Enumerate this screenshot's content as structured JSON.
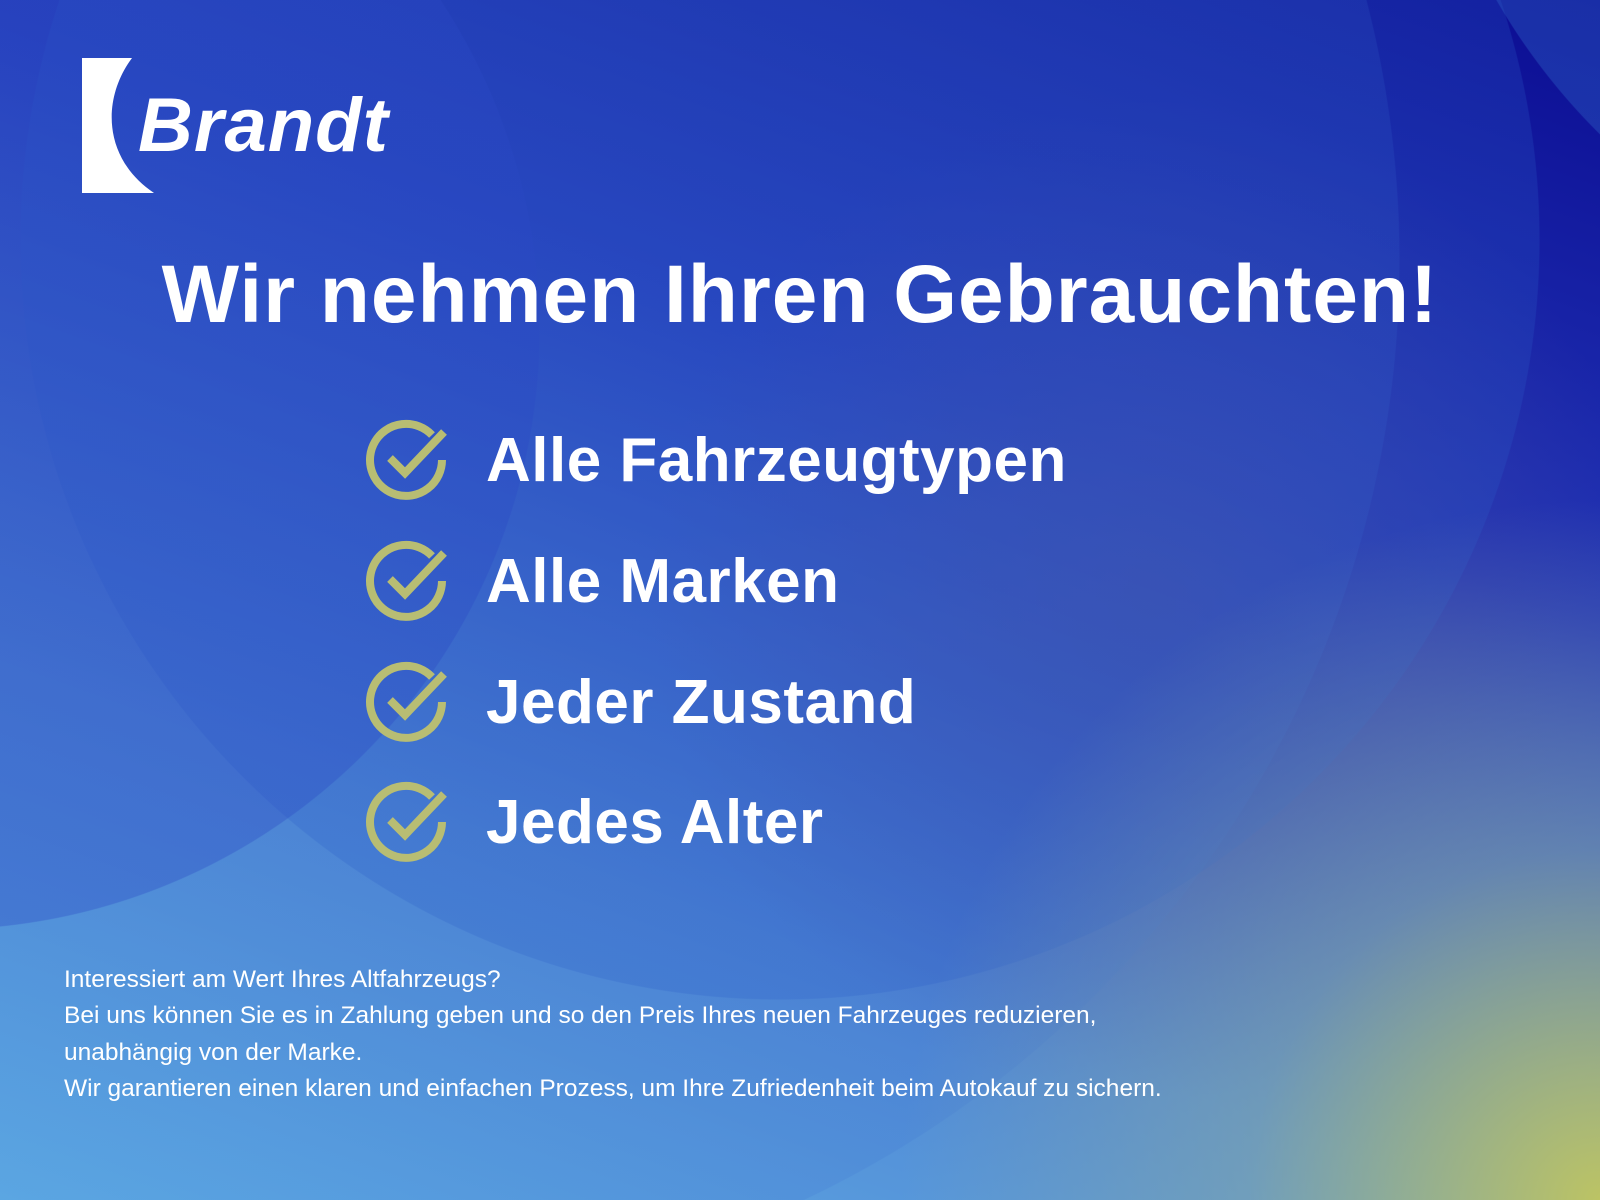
{
  "brand": {
    "name": "Brandt"
  },
  "headline": "Wir nehmen Ihren Gebrauchten!",
  "features": [
    {
      "label": "Alle Fahrzeugtypen",
      "icon": "check-circle-icon"
    },
    {
      "label": "Alle Marken",
      "icon": "check-circle-icon"
    },
    {
      "label": "Jeder Zustand",
      "icon": "check-circle-icon"
    },
    {
      "label": "Jedes Alter",
      "icon": "check-circle-icon"
    }
  ],
  "body": [
    "Interessiert am Wert Ihres Altfahrzeugs?",
    "Bei uns können Sie es in Zahlung geben und so den Preis Ihres neuen Fahrzeuges reduzieren,",
    "unabhängig von der Marke.",
    "Wir garantieren einen klaren und einfachen Prozess, um Ihre Zufriedenheit beim Autokauf zu sichern."
  ],
  "colors": {
    "accent": "#b8bd73",
    "dark_blue": "#0b0c92",
    "light_blue": "#62b2e6",
    "glow": "#c2c75e"
  }
}
